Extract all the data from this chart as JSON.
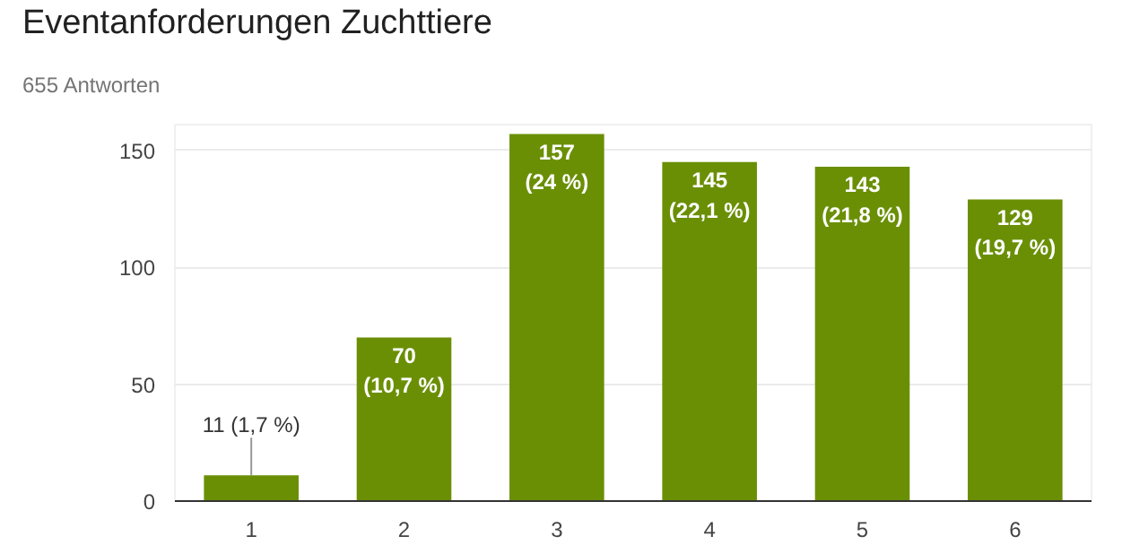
{
  "chart_data": {
    "type": "bar",
    "title": "Eventanforderungen Zuchttiere",
    "subtitle": "655 Antworten",
    "categories": [
      "1",
      "2",
      "3",
      "4",
      "5",
      "6"
    ],
    "values": [
      11,
      70,
      157,
      145,
      143,
      129
    ],
    "value_labels": [
      "11 (1,7 %)",
      "70\n(10,7 %)",
      "157\n(24 %)",
      "145\n(22,1 %)",
      "143\n(21,8 %)",
      "129\n(19,7 %)"
    ],
    "color": "#6a8f05",
    "ylim": [
      0,
      161
    ],
    "yticks": [
      0,
      50,
      100,
      150
    ],
    "grid": "y"
  }
}
